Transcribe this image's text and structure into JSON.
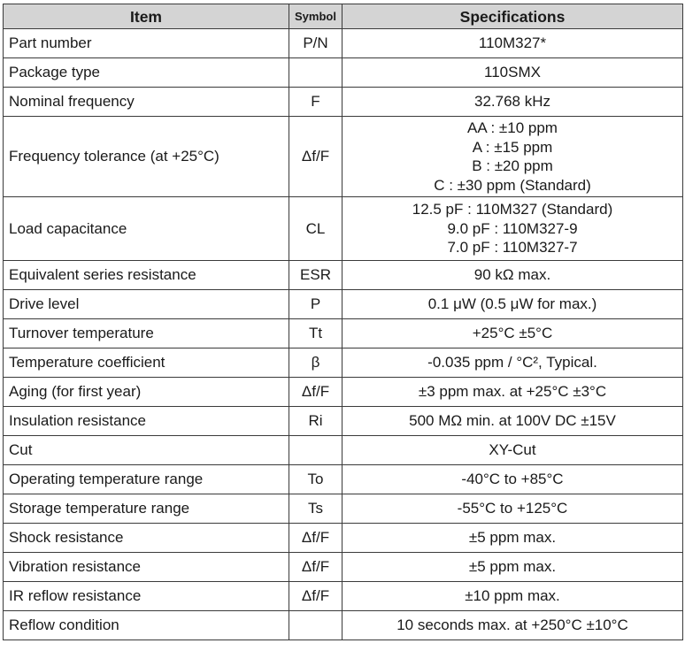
{
  "headers": {
    "item": "Item",
    "symbol": "Symbol",
    "specifications": "Specifications"
  },
  "rows": [
    {
      "item": "Part number",
      "symbol": "P/N",
      "values": [
        "110M327*"
      ]
    },
    {
      "item": "Package type",
      "symbol": "",
      "values": [
        "110SMX"
      ]
    },
    {
      "item": "Nominal frequency",
      "symbol": "F",
      "values": [
        "32.768 kHz"
      ]
    },
    {
      "item": "Frequency tolerance (at +25°C)",
      "symbol": "Δf/F",
      "values": [
        "AA : ±10 ppm",
        "A : ±15 ppm",
        "B : ±20 ppm",
        "C : ±30 ppm (Standard)"
      ]
    },
    {
      "item": "Load capacitance",
      "symbol": "CL",
      "values": [
        "12.5 pF : 110M327 (Standard)",
        "9.0 pF : 110M327-9",
        "7.0 pF : 110M327-7"
      ]
    },
    {
      "item": "Equivalent series resistance",
      "symbol": "ESR",
      "values": [
        "90 kΩ max."
      ]
    },
    {
      "item": "Drive level",
      "symbol": "P",
      "values": [
        "0.1 μW (0.5 μW for max.)"
      ]
    },
    {
      "item": "Turnover temperature",
      "symbol": "Tt",
      "values": [
        "+25°C ±5°C"
      ]
    },
    {
      "item": "Temperature coefficient",
      "symbol": "β",
      "values": [
        "-0.035 ppm / °C², Typical."
      ]
    },
    {
      "item": "Aging (for first year)",
      "symbol": "Δf/F",
      "values": [
        "±3 ppm max. at +25°C ±3°C"
      ]
    },
    {
      "item": "Insulation resistance",
      "symbol": "Ri",
      "values": [
        "500 MΩ min. at 100V DC ±15V"
      ]
    },
    {
      "item": "Cut",
      "symbol": "",
      "values": [
        "XY-Cut"
      ]
    },
    {
      "item": "Operating temperature range",
      "symbol": "To",
      "values": [
        "-40°C to +85°C"
      ]
    },
    {
      "item": "Storage temperature range",
      "symbol": "Ts",
      "values": [
        "-55°C to +125°C"
      ]
    },
    {
      "item": "Shock resistance",
      "symbol": "Δf/F",
      "values": [
        "±5 ppm max."
      ]
    },
    {
      "item": "Vibration resistance",
      "symbol": "Δf/F",
      "values": [
        "±5 ppm max."
      ]
    },
    {
      "item": "IR reflow resistance",
      "symbol": "Δf/F",
      "values": [
        "±10 ppm max."
      ]
    },
    {
      "item": "Reflow condition",
      "symbol": "",
      "values": [
        "10 seconds max. at +250°C ±10°C"
      ]
    }
  ]
}
